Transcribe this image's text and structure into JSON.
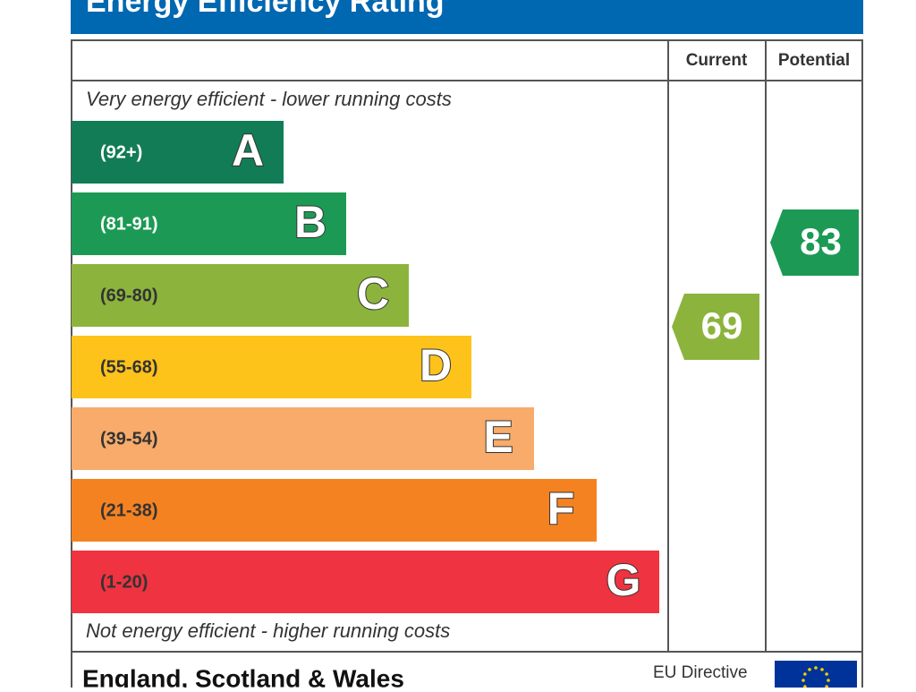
{
  "header": {
    "title": "Energy Efficiency Rating"
  },
  "columns": {
    "current": "Current",
    "potential": "Potential"
  },
  "top_note": "Very energy efficient - lower running costs",
  "bottom_note": "Not energy efficient - higher running costs",
  "bands": [
    {
      "range": "(92+)",
      "letter": "A",
      "color": "#127c57"
    },
    {
      "range": "(81-91)",
      "letter": "B",
      "color": "#1c9a55"
    },
    {
      "range": "(69-80)",
      "letter": "C",
      "color": "#8cb43d"
    },
    {
      "range": "(55-68)",
      "letter": "D",
      "color": "#fec31a"
    },
    {
      "range": "(39-54)",
      "letter": "E",
      "color": "#f8ab6a"
    },
    {
      "range": "(21-38)",
      "letter": "F",
      "color": "#f58221"
    },
    {
      "range": "(1-20)",
      "letter": "G",
      "color": "#ef3340"
    }
  ],
  "current": {
    "value": 69,
    "color": "#8cb43d"
  },
  "potential": {
    "value": 83,
    "color": "#1c9a55"
  },
  "footer": {
    "region": "England, Scotland & Wales",
    "directive": "EU Directive"
  }
}
